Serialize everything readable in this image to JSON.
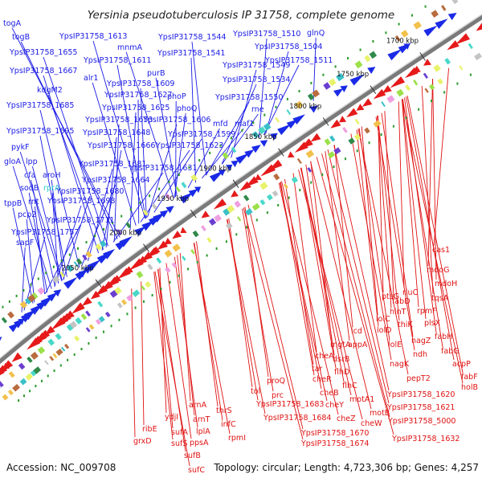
{
  "title": "Yersinia pseudotuberculosis IP 31758, complete genome",
  "accession": "Accession: NC_009708",
  "topology_line": "Topology: circular; Length: 4,723,306 bp; Genes: 4,257",
  "colors": {
    "forward_label": "#1a1ae6",
    "reverse_label": "#e01212",
    "highlight_label": "#33c6cc",
    "backbone": "#7a7a7a",
    "tick": "#2a9a2a"
  },
  "kbp_ticks": [
    "1700 kbp",
    "1750 kbp",
    "1800 kbp",
    "1850 kbp",
    "1900 kbp",
    "1950 kbp",
    "2000 kbp",
    "2050 kbp"
  ],
  "forward_genes": [
    "togA",
    "togB",
    "YpsIP31758_1613",
    "mnmA",
    "YpsIP31758_1544",
    "YpsIP31758_1510",
    "glnQ",
    "YpsIP31758_1655",
    "YpsIP31758_1611",
    "YpsIP31758_1541",
    "YpsIP31758_1504",
    "YpsIP31758_1667",
    "YpsIP31758_1549",
    "YpsIP31758_1511",
    "purB",
    "alr1",
    "YpsIP31758_1609",
    "YpsIP31758_1534",
    "kdgM2",
    "YpsIP31758_1627",
    "phoP",
    "YpsIP31758_1550",
    "YpsIP31758_1685",
    "YpsIP31758_1625",
    "phoQ",
    "rne",
    "YpsIP31758_1653",
    "YpsIP31758_1606",
    "mfd",
    "maf1",
    "YpsIP31758_1695",
    "YpsIP31758_1648",
    "YpsIP31758_1599",
    "pykF",
    "YpsIP31758_1666",
    "YpsIP31758_1623",
    "gloA",
    "lpp",
    "YpsIP31758_1681",
    "YpsIP31758_1631",
    "cfa",
    "aroH",
    "sodB",
    "rprA",
    "YpsIP31758_1664",
    "rnt",
    "YpsIP31758_1680",
    "tppB",
    "YpsIP31758_1698",
    "pcp2",
    "YpsIP31758_1711",
    "YpsIP31758_1757",
    "sapF"
  ],
  "reverse_genes": [
    "cas1",
    "mdoG",
    "mdoH",
    "rluC",
    "ptsG",
    "tqsA",
    "fabD",
    "rpmF",
    "hinT",
    "plsX",
    "lolC",
    "thiK",
    "fabH",
    "icd",
    "lolD",
    "nagZ",
    "fabG",
    "lolE",
    "ndh",
    "acpP",
    "mgtA",
    "appA",
    "nagK",
    "fabF",
    "cheA",
    "dsrB",
    "pepT2",
    "holB",
    "tar",
    "flhD",
    "cheR",
    "flhC",
    "proQ",
    "cheB",
    "motA1",
    "YpsIP31758_1620",
    "tol",
    "prc",
    "cheY",
    "motB",
    "YpsIP31758_1621",
    "YpsIP31758_1683",
    "cheZ",
    "cheW",
    "YpsIP31758_5000",
    "arnA",
    "thrS",
    "YpsIP31758_1684",
    "YpsIP31758_1670",
    "YpsIP31758_1632",
    "ribE",
    "ydjI",
    "arnT",
    "infC",
    "YpsIP31758_1674",
    "sufA",
    "lplA",
    "grxD",
    "sufS",
    "ppsA",
    "rpmI",
    "sufB",
    "sufC"
  ]
}
